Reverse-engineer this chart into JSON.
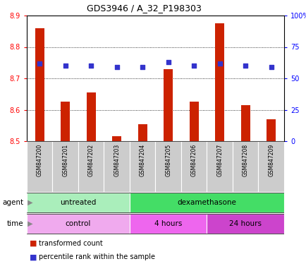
{
  "title": "GDS3946 / A_32_P198303",
  "samples": [
    "GSM847200",
    "GSM847201",
    "GSM847202",
    "GSM847203",
    "GSM847204",
    "GSM847205",
    "GSM847206",
    "GSM847207",
    "GSM847208",
    "GSM847209"
  ],
  "transformed_count": [
    8.86,
    8.625,
    8.655,
    8.515,
    8.555,
    8.73,
    8.625,
    8.875,
    8.615,
    8.57
  ],
  "percentile_rank": [
    62,
    60,
    60,
    59,
    59,
    63,
    60,
    62,
    60,
    59
  ],
  "ylim_left": [
    8.5,
    8.9
  ],
  "ylim_right": [
    0,
    100
  ],
  "yticks_left": [
    8.5,
    8.6,
    8.7,
    8.8,
    8.9
  ],
  "yticks_right": [
    0,
    25,
    50,
    75,
    100
  ],
  "bar_color": "#cc2200",
  "dot_color": "#3333cc",
  "bar_bottom": 8.5,
  "agent_groups": [
    {
      "label": "untreated",
      "start": 0,
      "end": 4,
      "color": "#aaeebb"
    },
    {
      "label": "dexamethasone",
      "start": 4,
      "end": 10,
      "color": "#44dd66"
    }
  ],
  "time_groups": [
    {
      "label": "control",
      "start": 0,
      "end": 4,
      "color": "#f0aaee"
    },
    {
      "label": "4 hours",
      "start": 4,
      "end": 7,
      "color": "#ee66ee"
    },
    {
      "label": "24 hours",
      "start": 7,
      "end": 10,
      "color": "#cc44cc"
    }
  ],
  "legend_items": [
    {
      "label": "transformed count",
      "color": "#cc2200"
    },
    {
      "label": "percentile rank within the sample",
      "color": "#3333cc"
    }
  ],
  "sample_bg": "#cccccc",
  "grid_color": "black"
}
